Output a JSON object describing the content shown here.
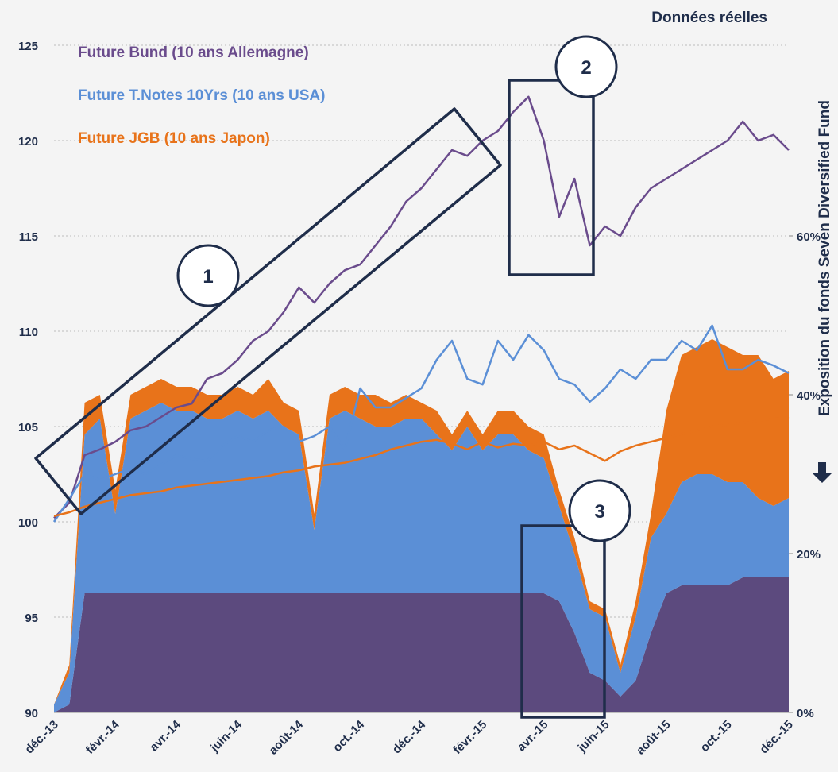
{
  "chart_data": {
    "type": "line",
    "subtitle": "Données réelles",
    "y2_label": "Exposition du fonds Seven Diversified Fund",
    "annotations": [
      "1",
      "2",
      "3"
    ],
    "categories": [
      "déc.-13",
      null,
      null,
      null,
      "févr.-14",
      null,
      null,
      null,
      "avr.-14",
      null,
      null,
      null,
      "juin-14",
      null,
      null,
      null,
      "août-14",
      null,
      null,
      null,
      "oct.-14",
      null,
      null,
      null,
      "déc.-14",
      null,
      null,
      null,
      "févr.-15",
      null,
      null,
      null,
      "avr.-15",
      null,
      null,
      null,
      "juin-15",
      null,
      null,
      null,
      "août-15",
      null,
      null,
      null,
      "oct.-15",
      null,
      null,
      null,
      "déc.-15"
    ],
    "ylim": [
      90,
      125
    ],
    "yticks": [
      90,
      95,
      100,
      105,
      110,
      115,
      120,
      125
    ],
    "y2lim": [
      0,
      84
    ],
    "y2ticks": [
      {
        "value": 0,
        "label": "0%"
      },
      {
        "value": 20,
        "label": "20%"
      },
      {
        "value": 40,
        "label": "40%"
      },
      {
        "value": 60,
        "label": "60%"
      }
    ],
    "grid": true,
    "series": [
      {
        "name": "Future Bund (10 ans Allemagne)",
        "color": "#6a4b8c",
        "values": [
          100.2,
          101,
          103.5,
          103.8,
          104.2,
          104.8,
          105,
          105.5,
          106,
          106.2,
          107.5,
          107.8,
          108.5,
          109.5,
          110,
          111,
          112.3,
          111.5,
          112.5,
          113.2,
          113.5,
          114.5,
          115.5,
          116.8,
          117.5,
          118.5,
          119.5,
          119.2,
          120,
          120.5,
          121.5,
          122.3,
          120,
          116,
          118,
          114.5,
          115.5,
          115,
          116.5,
          117.5,
          118,
          118.5,
          119,
          119.5,
          120,
          121,
          120,
          120.3,
          119.5
        ]
      },
      {
        "name": "Future T.Notes 10Yrs (10 ans USA)",
        "color": "#5b8fd6",
        "values": [
          100,
          101.2,
          102.5,
          102.2,
          102.5,
          102.8,
          102.5,
          103,
          103.5,
          103.3,
          103.2,
          104,
          104.5,
          104.2,
          104.8,
          105,
          104.2,
          104.5,
          105,
          103.8,
          107,
          106,
          106,
          106.5,
          107,
          108.5,
          109.5,
          107.5,
          107.2,
          109.5,
          108.5,
          109.8,
          109,
          107.5,
          107.2,
          106.3,
          107,
          108,
          107.5,
          108.5,
          108.5,
          109.5,
          109,
          110.3,
          108,
          108,
          108.5,
          108.2,
          107.8
        ]
      },
      {
        "name": "Future JGB (10 ans Japon)",
        "color": "#e8731a",
        "values": [
          100.3,
          100.5,
          100.8,
          101,
          101.2,
          101.4,
          101.5,
          101.6,
          101.8,
          101.9,
          102,
          102.1,
          102.2,
          102.3,
          102.4,
          102.6,
          102.7,
          102.9,
          103,
          103.1,
          103.3,
          103.5,
          103.8,
          104,
          104.2,
          104.3,
          104.1,
          103.8,
          104.2,
          103.9,
          104.1,
          104,
          104.2,
          103.8,
          104,
          103.6,
          103.2,
          103.7,
          104,
          104.2,
          104.4,
          104.6,
          104.8,
          105,
          105.1,
          105.2,
          105.3,
          105.4,
          105.5
        ]
      }
    ],
    "areas": [
      {
        "color": "#5c4a7e",
        "values": [
          0,
          1,
          15,
          15,
          15,
          15,
          15,
          15,
          15,
          15,
          15,
          15,
          15,
          15,
          15,
          15,
          15,
          15,
          15,
          15,
          15,
          15,
          15,
          15,
          15,
          15,
          15,
          15,
          15,
          15,
          15,
          15,
          15,
          14,
          10,
          5,
          4,
          2,
          4,
          10,
          15,
          16,
          16,
          16,
          16,
          17,
          17,
          17,
          17
        ]
      },
      {
        "color": "#5b8fd6",
        "values": [
          1,
          4,
          20,
          22,
          10,
          22,
          23,
          24,
          23,
          23,
          22,
          22,
          23,
          22,
          23,
          21,
          20,
          8,
          22,
          23,
          22,
          21,
          21,
          22,
          22,
          20,
          18,
          21,
          18,
          20,
          20,
          18,
          17,
          12,
          10,
          8,
          8,
          3,
          8,
          12,
          10,
          13,
          14,
          14,
          13,
          12,
          10,
          9,
          10
        ]
      },
      {
        "color": "#e8731a",
        "values": [
          0,
          1,
          4,
          3,
          3,
          3,
          3,
          3,
          3,
          3,
          3,
          3,
          3,
          3,
          4,
          3,
          3,
          2,
          3,
          3,
          3,
          4,
          3,
          3,
          2,
          3,
          2,
          2,
          2,
          3,
          3,
          3,
          3,
          2,
          2,
          1,
          1,
          1,
          2,
          3,
          13,
          16,
          16,
          17,
          17,
          16,
          18,
          16,
          16
        ]
      }
    ]
  }
}
